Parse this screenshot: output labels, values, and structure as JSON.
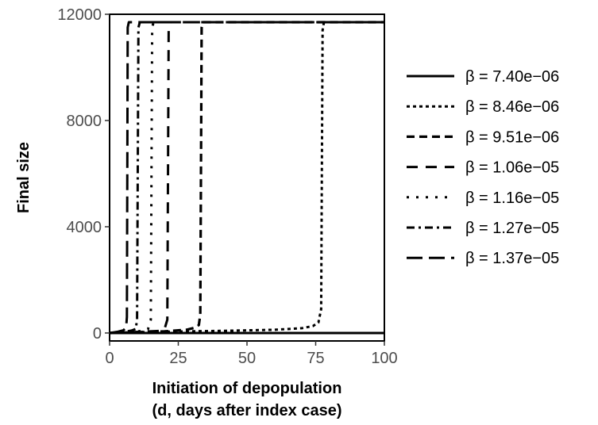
{
  "chart_data": {
    "type": "line",
    "xlabel_line1": "Initiation of depopulation",
    "xlabel_line2": "(d, days after index case)",
    "ylabel": "Final size",
    "xlim": [
      0,
      100
    ],
    "ylim": [
      -300,
      12000
    ],
    "x_ticks": [
      0,
      25,
      50,
      75,
      100
    ],
    "y_ticks": [
      0,
      4000,
      8000,
      12000
    ],
    "grid": false,
    "legend_position": "right",
    "series": [
      {
        "name": "β = 7.40e−06",
        "dash": "solid",
        "x": [
          0,
          100
        ],
        "y": [
          0,
          0
        ]
      },
      {
        "name": "β = 8.46e−06",
        "dash": "dotted-dense",
        "x": [
          0,
          10,
          20,
          40,
          60,
          70,
          74,
          76,
          77,
          77.5,
          78,
          80,
          100
        ],
        "y": [
          0,
          30,
          50,
          80,
          120,
          180,
          260,
          400,
          900,
          11400,
          11700,
          11700,
          11700
        ]
      },
      {
        "name": "β = 9.51e−06",
        "dash": "dash-heavy",
        "x": [
          0,
          10,
          20,
          28,
          31,
          32.5,
          33,
          33.5,
          34,
          40,
          100
        ],
        "y": [
          0,
          30,
          60,
          120,
          200,
          300,
          700,
          11500,
          11700,
          11700,
          11700
        ]
      },
      {
        "name": "β = 1.06e−05",
        "dash": "dash-medium",
        "x": [
          0,
          10,
          18,
          20,
          21,
          21.5,
          22,
          30,
          100
        ],
        "y": [
          0,
          40,
          80,
          150,
          500,
          11500,
          11700,
          11700,
          11700
        ]
      },
      {
        "name": "β = 1.16e−05",
        "dash": "dotted-sparse",
        "x": [
          0,
          8,
          12,
          14,
          15,
          15.5,
          16,
          25,
          100
        ],
        "y": [
          0,
          40,
          80,
          150,
          500,
          11500,
          11700,
          11700,
          11700
        ]
      },
      {
        "name": "β = 1.27e−05",
        "dash": "dashdot",
        "x": [
          0,
          5,
          8,
          9.5,
          10,
          10.5,
          11,
          20,
          100
        ],
        "y": [
          0,
          40,
          90,
          150,
          500,
          11500,
          11700,
          11700,
          11700
        ]
      },
      {
        "name": "β = 1.37e−05",
        "dash": "longdash",
        "x": [
          0,
          3,
          5,
          6,
          6.3,
          6.6,
          7,
          15,
          100
        ],
        "y": [
          0,
          50,
          100,
          200,
          600,
          11500,
          11700,
          11700,
          11700
        ]
      }
    ]
  }
}
